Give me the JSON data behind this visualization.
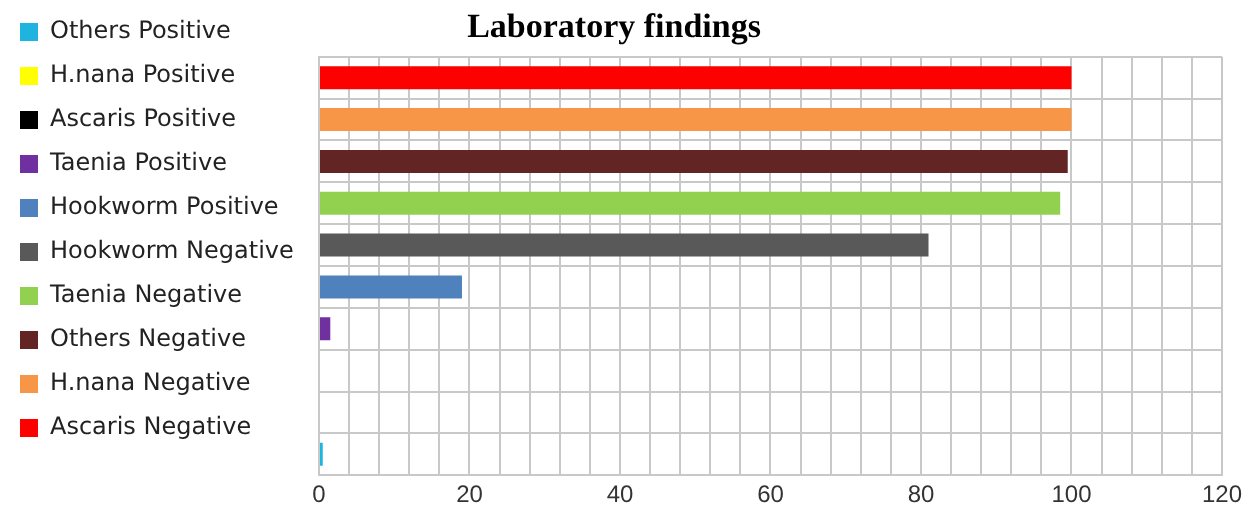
{
  "chart_data": {
    "type": "bar",
    "title": "Laboratory findings",
    "orientation": "horizontal",
    "categories": [
      null,
      null,
      null,
      null,
      null,
      null,
      null,
      null,
      null,
      null
    ],
    "series": [
      {
        "name": "Others Positive",
        "color": "#1fb4e0",
        "values": [
          null,
          null,
          null,
          null,
          null,
          null,
          null,
          null,
          null,
          0.5
        ]
      },
      {
        "name": "H.nana Positive",
        "color": "#ffff00",
        "values": [
          null,
          null,
          null,
          null,
          null,
          null,
          null,
          null,
          0,
          null
        ]
      },
      {
        "name": "Ascaris Positive",
        "color": "#000000",
        "values": [
          null,
          null,
          null,
          null,
          null,
          null,
          null,
          0,
          null,
          null
        ]
      },
      {
        "name": "Taenia Positive",
        "color": "#7030a0",
        "values": [
          null,
          null,
          null,
          null,
          null,
          null,
          1.5,
          null,
          null,
          null
        ]
      },
      {
        "name": "Hookworm Positive",
        "color": "#4f81bd",
        "values": [
          null,
          null,
          null,
          null,
          null,
          19,
          null,
          null,
          null,
          null
        ]
      },
      {
        "name": "Hookworm Negative",
        "color": "#595959",
        "values": [
          null,
          null,
          null,
          null,
          81,
          null,
          null,
          null,
          null,
          null
        ]
      },
      {
        "name": "Taenia Negative",
        "color": "#92d050",
        "values": [
          null,
          null,
          null,
          98.5,
          null,
          null,
          null,
          null,
          null,
          null
        ]
      },
      {
        "name": "Others Negative",
        "color": "#632523",
        "values": [
          null,
          null,
          99.5,
          null,
          null,
          null,
          null,
          null,
          null,
          null
        ]
      },
      {
        "name": "H.nana Negative",
        "color": "#f79646",
        "values": [
          null,
          100,
          null,
          null,
          null,
          null,
          null,
          null,
          null,
          null
        ]
      },
      {
        "name": "Ascaris Negative",
        "color": "#ff0000",
        "values": [
          100,
          null,
          null,
          null,
          null,
          null,
          null,
          null,
          null,
          null
        ]
      }
    ],
    "xlim": [
      0,
      120
    ],
    "xticks": [
      0,
      {
        "value": 4,
        "label": null
      },
      {
        "value": 8,
        "label": null
      },
      {
        "value": 12,
        "label": null
      },
      {
        "value": 16,
        "label": null
      },
      20,
      {
        "value": 24,
        "label": null
      },
      {
        "value": 28,
        "label": null
      },
      {
        "value": 32,
        "label": null
      },
      {
        "value": 36,
        "label": null
      },
      40,
      {
        "value": 44,
        "label": null
      },
      {
        "value": 48,
        "label": null
      },
      {
        "value": 52,
        "label": null
      },
      {
        "value": 56,
        "label": null
      },
      60,
      {
        "value": 64,
        "label": null
      },
      {
        "value": 68,
        "label": null
      },
      {
        "value": 72,
        "label": null
      },
      {
        "value": 76,
        "label": null
      },
      80,
      {
        "value": 84,
        "label": null
      },
      {
        "value": 88,
        "label": null
      },
      {
        "value": 92,
        "label": null
      },
      {
        "value": 96,
        "label": null
      },
      100,
      {
        "value": 104,
        "label": null
      },
      {
        "value": 108,
        "label": null
      },
      {
        "value": 112,
        "label": null
      },
      {
        "value": 116,
        "label": null
      },
      120
    ],
    "grid": true,
    "legend": "left"
  }
}
